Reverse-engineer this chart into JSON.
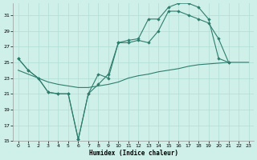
{
  "xlabel": "Humidex (Indice chaleur)",
  "bg_color": "#cff0e8",
  "grid_color": "#b0ddd4",
  "line_color": "#2e7d6e",
  "xlim": [
    -0.5,
    23.5
  ],
  "ylim": [
    15,
    32.5
  ],
  "yticks": [
    15,
    17,
    19,
    21,
    23,
    25,
    27,
    29,
    31
  ],
  "xticks": [
    0,
    1,
    2,
    3,
    4,
    5,
    6,
    7,
    8,
    9,
    10,
    11,
    12,
    13,
    14,
    15,
    16,
    17,
    18,
    19,
    20,
    21,
    22,
    23
  ],
  "line1_x": [
    0,
    1,
    2,
    3,
    4,
    5,
    6,
    7,
    8,
    9,
    10,
    11,
    12,
    13,
    14,
    15,
    16,
    17,
    18,
    19,
    20,
    21
  ],
  "line1_y": [
    25.5,
    24.0,
    23.0,
    21.2,
    21.0,
    21.0,
    15.2,
    21.0,
    22.2,
    23.5,
    27.5,
    27.8,
    28.0,
    30.5,
    30.5,
    32.0,
    32.5,
    32.5,
    32.0,
    30.5,
    25.5,
    25.0
  ],
  "line2_x": [
    0,
    1,
    2,
    3,
    4,
    5,
    6,
    7,
    8,
    9,
    10,
    11,
    12,
    13,
    14,
    15,
    16,
    17,
    18,
    19,
    20,
    21
  ],
  "line2_y": [
    25.5,
    24.0,
    23.0,
    21.2,
    21.0,
    21.0,
    15.2,
    21.0,
    23.5,
    23.0,
    27.5,
    27.5,
    27.8,
    27.5,
    29.0,
    31.5,
    31.5,
    31.0,
    30.5,
    30.0,
    28.0,
    25.0
  ],
  "line3_x": [
    0,
    1,
    2,
    3,
    4,
    5,
    6,
    7,
    8,
    9,
    10,
    11,
    12,
    13,
    14,
    15,
    16,
    17,
    18,
    19,
    20,
    21,
    22,
    23
  ],
  "line3_y": [
    24.0,
    23.5,
    23.0,
    22.5,
    22.2,
    22.0,
    21.8,
    21.8,
    22.0,
    22.2,
    22.5,
    23.0,
    23.3,
    23.5,
    23.8,
    24.0,
    24.2,
    24.5,
    24.7,
    24.8,
    24.9,
    25.0,
    25.0,
    25.0
  ]
}
